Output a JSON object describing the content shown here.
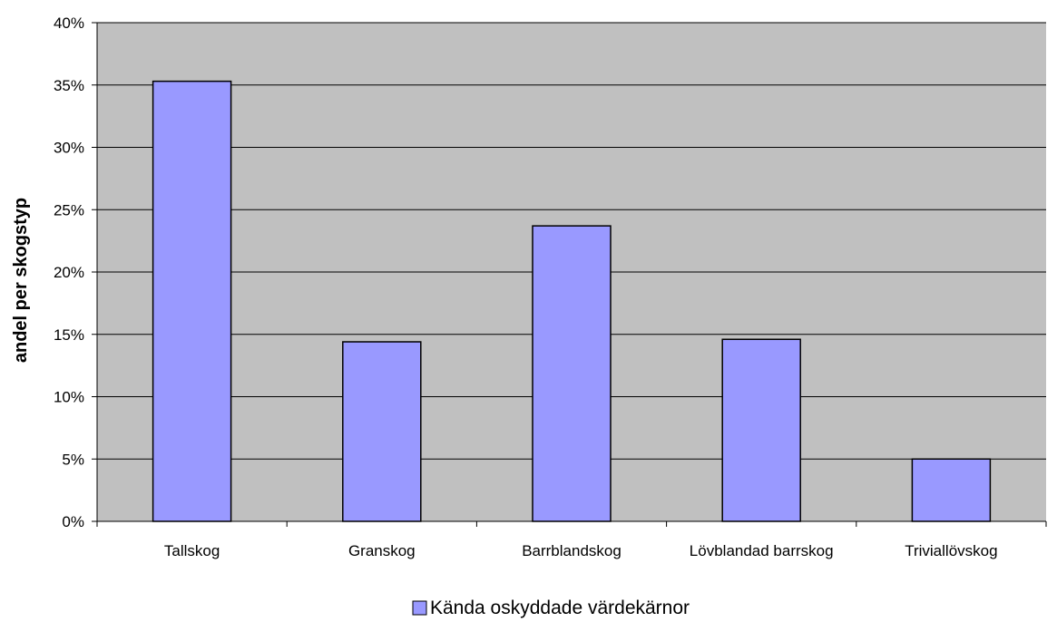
{
  "chart_data": {
    "type": "bar",
    "categories": [
      "Tallskog",
      "Granskog",
      "Barrblandskog",
      "Lövblandad barrskog",
      "Triviallövskog"
    ],
    "series": [
      {
        "name": "Kända oskyddade värdekärnor",
        "values": [
          35.3,
          14.4,
          23.7,
          14.6,
          5.0
        ]
      }
    ],
    "xlabel": "",
    "ylabel": "andel per skogstyp",
    "ylim": [
      0,
      40
    ],
    "yticks": [
      "0%",
      "5%",
      "10%",
      "15%",
      "20%",
      "25%",
      "30%",
      "35%",
      "40%"
    ],
    "grid": true,
    "legend": "bottom-center",
    "colors": {
      "plot_background": "#c0c0c0",
      "bar_fill": "#9999ff",
      "bar_stroke": "#000000"
    }
  }
}
